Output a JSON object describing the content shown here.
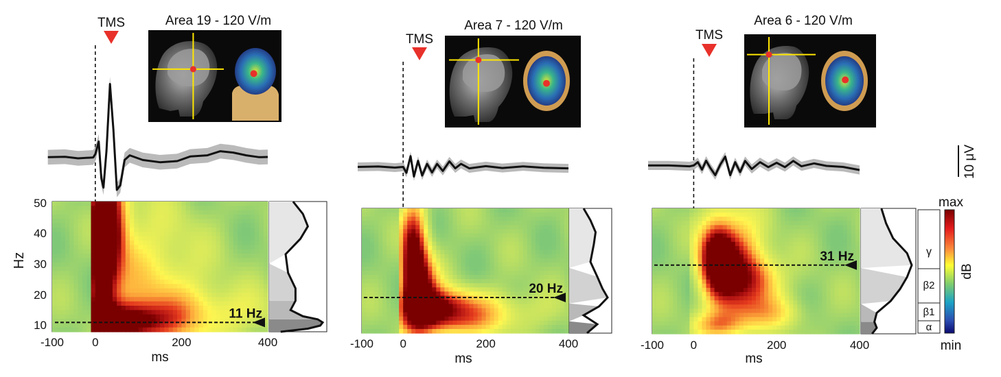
{
  "figure": {
    "colors": {
      "tms_marker": "#e8312a",
      "mean_trace": "#111111",
      "trial_traces": "#b3b3b3",
      "annotation_line": "#111111"
    },
    "scale_bar_label": "10 μV",
    "y_axis_label": "Hz",
    "y_ticks": [
      "50",
      "40",
      "30",
      "20",
      "10"
    ],
    "colorbar": {
      "max_label": "max",
      "min_label": "min",
      "unit_label": "dB"
    },
    "bands": [
      {
        "symbol": "γ"
      },
      {
        "symbol": "β2"
      },
      {
        "symbol": "β1"
      },
      {
        "symbol": "α"
      }
    ]
  },
  "chart_data": [
    {
      "type": "heatmap",
      "title": "Area 19 - 120 V/m",
      "stim_label": "TMS",
      "xlabel": "ms",
      "ylabel": "Hz",
      "x_ticks": [
        "-100",
        "0",
        "200",
        "400"
      ],
      "xlim": [
        -100,
        400
      ],
      "ylim": [
        8,
        50
      ],
      "peak_frequency_hz": 11,
      "peak_label": "11 Hz",
      "heat_blobs": [
        {
          "t": 12,
          "f": 30,
          "st": 24,
          "sf": 22,
          "a": 1.0
        },
        {
          "t": 35,
          "f": 44,
          "st": 28,
          "sf": 12,
          "a": 0.8
        },
        {
          "t": 60,
          "f": 11,
          "st": 70,
          "sf": 4,
          "a": 0.9
        },
        {
          "t": 120,
          "f": 22,
          "st": 90,
          "sf": 18,
          "a": 0.35
        },
        {
          "t": 250,
          "f": 14,
          "st": 120,
          "sf": 6,
          "a": 0.28
        }
      ],
      "erp_mean_uV": [
        [
          -110,
          0.2
        ],
        [
          -70,
          0.4
        ],
        [
          -40,
          -0.3
        ],
        [
          -5,
          0.1
        ],
        [
          0,
          1.5
        ],
        [
          8,
          7
        ],
        [
          14,
          -9
        ],
        [
          19,
          -13
        ],
        [
          26,
          3
        ],
        [
          34,
          32
        ],
        [
          42,
          12
        ],
        [
          50,
          -14
        ],
        [
          58,
          -12
        ],
        [
          68,
          -1
        ],
        [
          80,
          1
        ],
        [
          110,
          -1
        ],
        [
          150,
          -2
        ],
        [
          190,
          -1.5
        ],
        [
          220,
          0.5
        ],
        [
          260,
          1
        ],
        [
          290,
          2.8
        ],
        [
          320,
          2.2
        ],
        [
          350,
          1
        ],
        [
          380,
          0.2
        ],
        [
          400,
          0.3
        ]
      ],
      "erp_trial_band_uV": 3.2,
      "spectrum_profile": [
        [
          8,
          0.15
        ],
        [
          9,
          0.7
        ],
        [
          10,
          0.95
        ],
        [
          11,
          1.0
        ],
        [
          12,
          0.9
        ],
        [
          13,
          0.6
        ],
        [
          15,
          0.35
        ],
        [
          18,
          0.45
        ],
        [
          22,
          0.45
        ],
        [
          27,
          0.3
        ],
        [
          33,
          0.25
        ],
        [
          38,
          0.55
        ],
        [
          42,
          0.7
        ],
        [
          46,
          0.6
        ],
        [
          50,
          0.4
        ]
      ],
      "sagittal_crosshair": [
        0.55,
        0.42
      ],
      "topo_dot": [
        0.46,
        0.55
      ]
    },
    {
      "type": "heatmap",
      "title": "Area 7 - 120 V/m",
      "stim_label": "TMS",
      "xlabel": "ms",
      "ylabel": "Hz",
      "x_ticks": [
        "-100",
        "0",
        "200",
        "400"
      ],
      "xlim": [
        -100,
        400
      ],
      "ylim": [
        8,
        50
      ],
      "peak_frequency_hz": 20,
      "peak_label": "20 Hz",
      "heat_blobs": [
        {
          "t": 25,
          "f": 35,
          "st": 22,
          "sf": 12,
          "a": 1.0
        },
        {
          "t": 40,
          "f": 22,
          "st": 30,
          "sf": 8,
          "a": 0.9
        },
        {
          "t": 80,
          "f": 17,
          "st": 55,
          "sf": 4,
          "a": 0.65
        },
        {
          "t": 160,
          "f": 15,
          "st": 110,
          "sf": 5,
          "a": 0.4
        },
        {
          "t": 90,
          "f": 11,
          "st": 70,
          "sf": 3,
          "a": 0.3
        }
      ],
      "erp_mean_uV": [
        [
          -110,
          0.2
        ],
        [
          -60,
          0.4
        ],
        [
          -20,
          -0.2
        ],
        [
          0,
          0.2
        ],
        [
          8,
          -3
        ],
        [
          18,
          6
        ],
        [
          26,
          -5
        ],
        [
          36,
          3.5
        ],
        [
          46,
          -4.5
        ],
        [
          58,
          1.8
        ],
        [
          70,
          -2.8
        ],
        [
          82,
          1.8
        ],
        [
          96,
          -2
        ],
        [
          112,
          3.2
        ],
        [
          126,
          -0.6
        ],
        [
          140,
          1.8
        ],
        [
          160,
          -0.6
        ],
        [
          200,
          0.6
        ],
        [
          240,
          -0.4
        ],
        [
          290,
          0.5
        ],
        [
          340,
          -0.3
        ],
        [
          400,
          -0.6
        ]
      ],
      "erp_trial_band_uV": 2.4,
      "spectrum_profile": [
        [
          8,
          0.4
        ],
        [
          11,
          0.7
        ],
        [
          14,
          0.3
        ],
        [
          17,
          0.75
        ],
        [
          20,
          1.0
        ],
        [
          23,
          0.85
        ],
        [
          27,
          0.7
        ],
        [
          32,
          0.5
        ],
        [
          38,
          0.6
        ],
        [
          42,
          0.65
        ],
        [
          46,
          0.5
        ],
        [
          50,
          0.3
        ]
      ],
      "sagittal_crosshair": [
        0.42,
        0.25
      ],
      "topo_dot": [
        0.5,
        0.55
      ]
    },
    {
      "type": "heatmap",
      "title": "Area 6 - 120 V/m",
      "stim_label": "TMS",
      "xlabel": "ms",
      "ylabel": "Hz",
      "x_ticks": [
        "-100",
        "0",
        "200",
        "400"
      ],
      "xlim": [
        -100,
        400
      ],
      "ylim": [
        8,
        50
      ],
      "peak_frequency_hz": 31,
      "peak_label": "31 Hz",
      "heat_blobs": [
        {
          "t": 55,
          "f": 33,
          "st": 28,
          "sf": 8,
          "a": 1.0
        },
        {
          "t": 95,
          "f": 30,
          "st": 45,
          "sf": 12,
          "a": 0.8
        },
        {
          "t": 160,
          "f": 26,
          "st": 40,
          "sf": 6,
          "a": 0.45
        },
        {
          "t": 60,
          "f": 11,
          "st": 45,
          "sf": 3,
          "a": 0.4
        },
        {
          "t": 180,
          "f": 15,
          "st": 60,
          "sf": 4,
          "a": 0.3
        }
      ],
      "erp_mean_uV": [
        [
          -110,
          0.2
        ],
        [
          -60,
          0.2
        ],
        [
          -10,
          -0.2
        ],
        [
          0,
          0.2
        ],
        [
          10,
          1.8
        ],
        [
          20,
          -1.8
        ],
        [
          30,
          2.5
        ],
        [
          40,
          -1
        ],
        [
          52,
          -4.5
        ],
        [
          64,
          0.6
        ],
        [
          76,
          4.5
        ],
        [
          88,
          -4.5
        ],
        [
          100,
          1.8
        ],
        [
          112,
          -3
        ],
        [
          124,
          2.4
        ],
        [
          140,
          -1.5
        ],
        [
          160,
          1.8
        ],
        [
          180,
          -0.6
        ],
        [
          200,
          1.5
        ],
        [
          220,
          -0.6
        ],
        [
          240,
          2.4
        ],
        [
          260,
          -0.2
        ],
        [
          290,
          1.2
        ],
        [
          320,
          0
        ],
        [
          360,
          -0.5
        ],
        [
          400,
          -2
        ]
      ],
      "erp_trial_band_uV": 2.2,
      "spectrum_profile": [
        [
          8,
          0.15
        ],
        [
          10,
          0.25
        ],
        [
          12,
          0.2
        ],
        [
          15,
          0.25
        ],
        [
          19,
          0.55
        ],
        [
          23,
          0.75
        ],
        [
          27,
          0.9
        ],
        [
          31,
          1.0
        ],
        [
          35,
          0.9
        ],
        [
          40,
          0.6
        ],
        [
          45,
          0.45
        ],
        [
          50,
          0.35
        ]
      ],
      "sagittal_crosshair": [
        0.32,
        0.2
      ],
      "topo_dot": [
        0.52,
        0.48
      ]
    }
  ]
}
